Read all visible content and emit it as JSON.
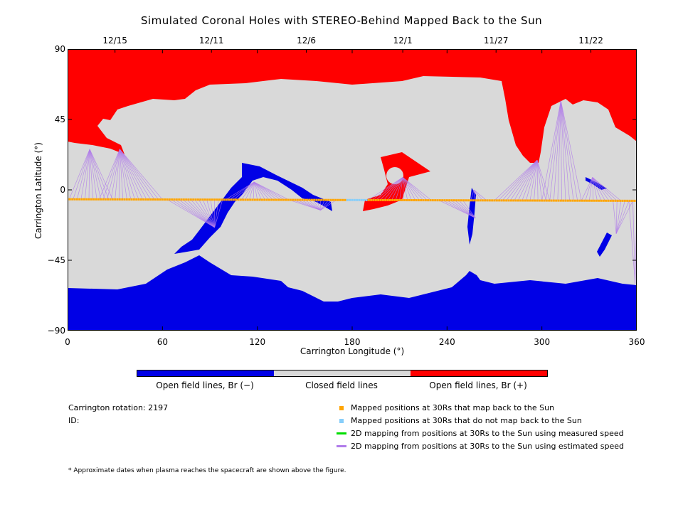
{
  "chart_data": {
    "type": "heatmap",
    "title": "Simulated Coronal Holes with STEREO-Behind Mapped Back to the Sun",
    "xlabel": "Carrington Longitude (°)",
    "ylabel": "Carrington Latitude (°)",
    "xlim": [
      0,
      360
    ],
    "ylim": [
      -90,
      90
    ],
    "x_ticks": [
      "0",
      "60",
      "120",
      "180",
      "240",
      "300",
      "360"
    ],
    "y_ticks": [
      "90",
      "45",
      "0",
      "−45",
      "−90"
    ],
    "top_axis_dates": [
      {
        "label": "12/15",
        "lon": 30
      },
      {
        "label": "12/11",
        "lon": 91
      },
      {
        "label": "12/6",
        "lon": 151
      },
      {
        "label": "12/1",
        "lon": 212
      },
      {
        "label": "11/27",
        "lon": 271
      },
      {
        "label": "11/22",
        "lon": 331
      }
    ],
    "colorbar": [
      {
        "label": "Open field lines, Br (−)",
        "color": "#0000e6"
      },
      {
        "label": "Closed field lines",
        "color": "#d9d9d9"
      },
      {
        "label": "Open field lines, Br (+)",
        "color": "#ff0000"
      }
    ],
    "regions": {
      "north_positive_hole": {
        "color": "#ff0000"
      },
      "south_negative_hole": {
        "color": "#0000e6"
      },
      "closed": {
        "color": "#d9d9d9"
      }
    },
    "track_start_lat": -6,
    "track_end_lat": -7,
    "not_mapped_lon_range": [
      176,
      190
    ],
    "series": [
      {
        "name": "Mapped positions at 30Rs that map back to the Sun",
        "color": "#ffa500",
        "marker": "square"
      },
      {
        "name": "Mapped positions at 30Rs that do not map back to the Sun",
        "color": "#87cefa",
        "marker": "square"
      },
      {
        "name": "2D mapping from positions at 30Rs to the Sun using measured speed",
        "color": "#00dd00",
        "marker": "line"
      },
      {
        "name": "2D mapping from positions at 30Rs to the Sun using estimated speed",
        "color": "#b07bea",
        "marker": "line"
      }
    ],
    "mapping_lines": [
      {
        "from_lon": [
          1,
          30
        ],
        "to_lon": 14,
        "to_lat": 26
      },
      {
        "from_lon": [
          20,
          60
        ],
        "to_lon": 33,
        "to_lat": 26
      },
      {
        "from_lon": [
          63,
          100
        ],
        "to_lon": 93,
        "to_lat": -24
      },
      {
        "from_lon": [
          100,
          140
        ],
        "to_lon": 118,
        "to_lat": 5
      },
      {
        "from_lon": [
          140,
          170
        ],
        "to_lon": 160,
        "to_lat": -13
      },
      {
        "from_lon": [
          190,
          230
        ],
        "to_lon": 212,
        "to_lat": 8
      },
      {
        "from_lon": [
          235,
          250
        ],
        "to_lon": 258,
        "to_lat": -18
      },
      {
        "from_lon": [
          255,
          265
        ],
        "to_lon": 257,
        "to_lat": 0
      },
      {
        "from_lon": [
          270,
          305
        ],
        "to_lon": 297,
        "to_lat": 19
      },
      {
        "from_lon": [
          300,
          325
        ],
        "to_lon": 312,
        "to_lat": 57
      },
      {
        "from_lon": [
          325,
          350
        ],
        "to_lon": 332,
        "to_lat": 8
      },
      {
        "from_lon": [
          345,
          358
        ],
        "to_lon": 347,
        "to_lat": -28
      },
      {
        "from_lon": [
          355,
          360
        ],
        "to_lon": 359,
        "to_lat": -60
      }
    ]
  },
  "info": {
    "carrington_rotation_label": "Carrington rotation: 2197",
    "id_label": "ID:"
  },
  "footnote": "* Approximate dates when plasma reaches the spacecraft are shown above the figure."
}
